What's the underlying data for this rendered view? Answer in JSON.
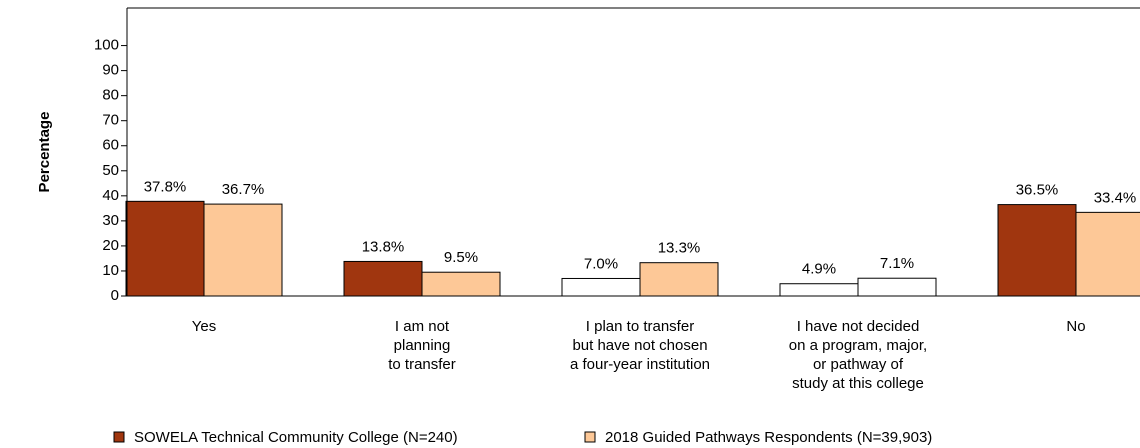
{
  "chart_data": {
    "type": "bar",
    "y_label": "Percentage",
    "categories": [
      "Yes",
      "I am not\nplanning\nto transfer",
      "I plan to transfer\nbut have not chosen\na four-year institution",
      "I have not decided\non a program, major,\nor pathway of\nstudy at this college",
      "No"
    ],
    "series": [
      {
        "name": "SOWELA Technical Community College (N=240)",
        "color": "#a0360f",
        "colors": [
          "#a0360f",
          "#a0360f",
          "#ffffff",
          "#ffffff",
          "#a0360f"
        ],
        "values": [
          37.8,
          13.8,
          7.0,
          4.9,
          36.5
        ],
        "value_labels": [
          "37.8%",
          "13.8%",
          "7.0%",
          "4.9%",
          "36.5%"
        ]
      },
      {
        "name": "2018 Guided Pathways Respondents (N=39,903)",
        "color": "#fdc897",
        "colors": [
          "#fdc897",
          "#fdc897",
          "#fdc897",
          "#ffffff",
          "#fdc897"
        ],
        "values": [
          36.7,
          9.5,
          13.3,
          7.1,
          33.4
        ],
        "value_labels": [
          "36.7%",
          "9.5%",
          "13.3%",
          "7.1%",
          "33.4%"
        ]
      }
    ],
    "ylim": [
      0,
      115
    ],
    "yticks": [
      0,
      10,
      20,
      30,
      40,
      50,
      60,
      70,
      80,
      90,
      100
    ],
    "grid": false
  }
}
